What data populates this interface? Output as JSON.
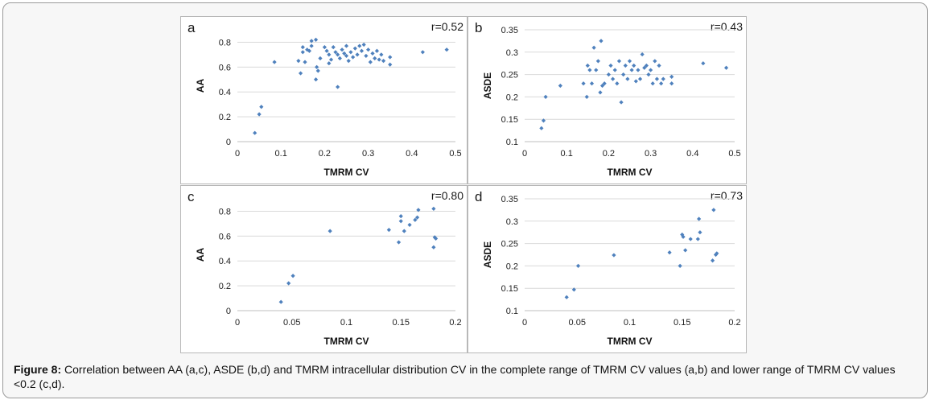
{
  "caption": {
    "label": "Figure 8:",
    "text": "Correlation between AA (a,c), ASDE (b,d) and TMRM intracellular distribution CV in the complete range of TMRM CV values (a,b) and lower range of TMRM CV values <0.2 (c,d)."
  },
  "chart_data": [
    {
      "panel": "a",
      "type": "scatter",
      "r_label": "r=0.52",
      "xlabel": "TMRM CV",
      "ylabel": "AA",
      "xlim": [
        0,
        0.5
      ],
      "ylim": [
        0,
        0.9
      ],
      "xticks": [
        "0",
        "0.1",
        "0.2",
        "0.3",
        "0.4",
        "0.5"
      ],
      "yticks": [
        "0",
        "0.2",
        "0.4",
        "0.6",
        "0.8"
      ],
      "grid": "horizontal",
      "marker_color": "#4f81bd",
      "points": [
        [
          0.04,
          0.07
        ],
        [
          0.05,
          0.22
        ],
        [
          0.055,
          0.28
        ],
        [
          0.085,
          0.64
        ],
        [
          0.14,
          0.65
        ],
        [
          0.145,
          0.55
        ],
        [
          0.15,
          0.72
        ],
        [
          0.15,
          0.76
        ],
        [
          0.155,
          0.64
        ],
        [
          0.16,
          0.74
        ],
        [
          0.165,
          0.73
        ],
        [
          0.17,
          0.77
        ],
        [
          0.17,
          0.81
        ],
        [
          0.18,
          0.5
        ],
        [
          0.18,
          0.82
        ],
        [
          0.182,
          0.6
        ],
        [
          0.185,
          0.57
        ],
        [
          0.19,
          0.67
        ],
        [
          0.2,
          0.76
        ],
        [
          0.205,
          0.73
        ],
        [
          0.21,
          0.7
        ],
        [
          0.21,
          0.63
        ],
        [
          0.215,
          0.66
        ],
        [
          0.22,
          0.76
        ],
        [
          0.225,
          0.72
        ],
        [
          0.23,
          0.44
        ],
        [
          0.23,
          0.7
        ],
        [
          0.235,
          0.67
        ],
        [
          0.24,
          0.74
        ],
        [
          0.245,
          0.71
        ],
        [
          0.25,
          0.69
        ],
        [
          0.25,
          0.77
        ],
        [
          0.255,
          0.65
        ],
        [
          0.26,
          0.72
        ],
        [
          0.265,
          0.68
        ],
        [
          0.27,
          0.75
        ],
        [
          0.275,
          0.7
        ],
        [
          0.28,
          0.77
        ],
        [
          0.285,
          0.73
        ],
        [
          0.29,
          0.78
        ],
        [
          0.295,
          0.69
        ],
        [
          0.3,
          0.74
        ],
        [
          0.305,
          0.64
        ],
        [
          0.31,
          0.71
        ],
        [
          0.315,
          0.67
        ],
        [
          0.32,
          0.73
        ],
        [
          0.325,
          0.66
        ],
        [
          0.33,
          0.7
        ],
        [
          0.335,
          0.65
        ],
        [
          0.35,
          0.68
        ],
        [
          0.35,
          0.62
        ],
        [
          0.425,
          0.72
        ],
        [
          0.48,
          0.74
        ]
      ]
    },
    {
      "panel": "b",
      "type": "scatter",
      "r_label": "r=0.43",
      "xlabel": "TMRM CV",
      "ylabel": "ASDE",
      "xlim": [
        0,
        0.5
      ],
      "ylim": [
        0.1,
        0.35
      ],
      "xticks": [
        "0",
        "0.1",
        "0.2",
        "0.3",
        "0.4",
        "0.5"
      ],
      "yticks": [
        "0.1",
        "0.15",
        "0.2",
        "0.25",
        "0.3",
        "0.35"
      ],
      "grid": "horizontal",
      "marker_color": "#4f81bd",
      "points": [
        [
          0.04,
          0.13
        ],
        [
          0.045,
          0.147
        ],
        [
          0.05,
          0.2
        ],
        [
          0.085,
          0.225
        ],
        [
          0.14,
          0.23
        ],
        [
          0.148,
          0.2
        ],
        [
          0.15,
          0.27
        ],
        [
          0.155,
          0.26
        ],
        [
          0.16,
          0.23
        ],
        [
          0.165,
          0.31
        ],
        [
          0.17,
          0.26
        ],
        [
          0.175,
          0.28
        ],
        [
          0.18,
          0.21
        ],
        [
          0.182,
          0.325
        ],
        [
          0.185,
          0.225
        ],
        [
          0.19,
          0.23
        ],
        [
          0.2,
          0.25
        ],
        [
          0.205,
          0.27
        ],
        [
          0.21,
          0.24
        ],
        [
          0.215,
          0.26
        ],
        [
          0.22,
          0.23
        ],
        [
          0.225,
          0.28
        ],
        [
          0.23,
          0.188
        ],
        [
          0.235,
          0.25
        ],
        [
          0.24,
          0.27
        ],
        [
          0.245,
          0.24
        ],
        [
          0.25,
          0.28
        ],
        [
          0.255,
          0.26
        ],
        [
          0.26,
          0.27
        ],
        [
          0.265,
          0.235
        ],
        [
          0.27,
          0.26
        ],
        [
          0.275,
          0.24
        ],
        [
          0.28,
          0.295
        ],
        [
          0.285,
          0.265
        ],
        [
          0.29,
          0.27
        ],
        [
          0.295,
          0.25
        ],
        [
          0.3,
          0.26
        ],
        [
          0.305,
          0.23
        ],
        [
          0.31,
          0.28
        ],
        [
          0.315,
          0.24
        ],
        [
          0.32,
          0.27
        ],
        [
          0.325,
          0.23
        ],
        [
          0.33,
          0.24
        ],
        [
          0.35,
          0.245
        ],
        [
          0.35,
          0.23
        ],
        [
          0.425,
          0.275
        ],
        [
          0.48,
          0.265
        ]
      ]
    },
    {
      "panel": "c",
      "type": "scatter",
      "r_label": "r=0.80",
      "xlabel": "TMRM CV",
      "ylabel": "AA",
      "xlim": [
        0,
        0.2
      ],
      "ylim": [
        0,
        0.9
      ],
      "xticks": [
        "0",
        "0.05",
        "0.1",
        "0.15",
        "0.2"
      ],
      "yticks": [
        "0",
        "0.2",
        "0.4",
        "0.6",
        "0.8"
      ],
      "grid": "horizontal",
      "marker_color": "#4f81bd",
      "points": [
        [
          0.04,
          0.07
        ],
        [
          0.047,
          0.22
        ],
        [
          0.051,
          0.28
        ],
        [
          0.085,
          0.64
        ],
        [
          0.139,
          0.65
        ],
        [
          0.148,
          0.55
        ],
        [
          0.15,
          0.72
        ],
        [
          0.15,
          0.76
        ],
        [
          0.153,
          0.64
        ],
        [
          0.158,
          0.69
        ],
        [
          0.163,
          0.73
        ],
        [
          0.165,
          0.75
        ],
        [
          0.166,
          0.81
        ],
        [
          0.18,
          0.51
        ],
        [
          0.18,
          0.82
        ],
        [
          0.181,
          0.59
        ],
        [
          0.182,
          0.58
        ]
      ]
    },
    {
      "panel": "d",
      "type": "scatter",
      "r_label": "r=0.73",
      "xlabel": "TMRM CV",
      "ylabel": "ASDE",
      "xlim": [
        0,
        0.2
      ],
      "ylim": [
        0.1,
        0.35
      ],
      "xticks": [
        "0",
        "0.05",
        "0.1",
        "0.15",
        "0.2"
      ],
      "yticks": [
        "0.1",
        "0.15",
        "0.2",
        "0.25",
        "0.3",
        "0.35"
      ],
      "grid": "horizontal",
      "marker_color": "#4f81bd",
      "points": [
        [
          0.04,
          0.13
        ],
        [
          0.047,
          0.147
        ],
        [
          0.051,
          0.2
        ],
        [
          0.085,
          0.224
        ],
        [
          0.138,
          0.23
        ],
        [
          0.148,
          0.2
        ],
        [
          0.15,
          0.27
        ],
        [
          0.151,
          0.265
        ],
        [
          0.153,
          0.235
        ],
        [
          0.158,
          0.26
        ],
        [
          0.165,
          0.26
        ],
        [
          0.166,
          0.305
        ],
        [
          0.167,
          0.275
        ],
        [
          0.179,
          0.212
        ],
        [
          0.18,
          0.325
        ],
        [
          0.182,
          0.225
        ],
        [
          0.183,
          0.228
        ]
      ]
    }
  ]
}
